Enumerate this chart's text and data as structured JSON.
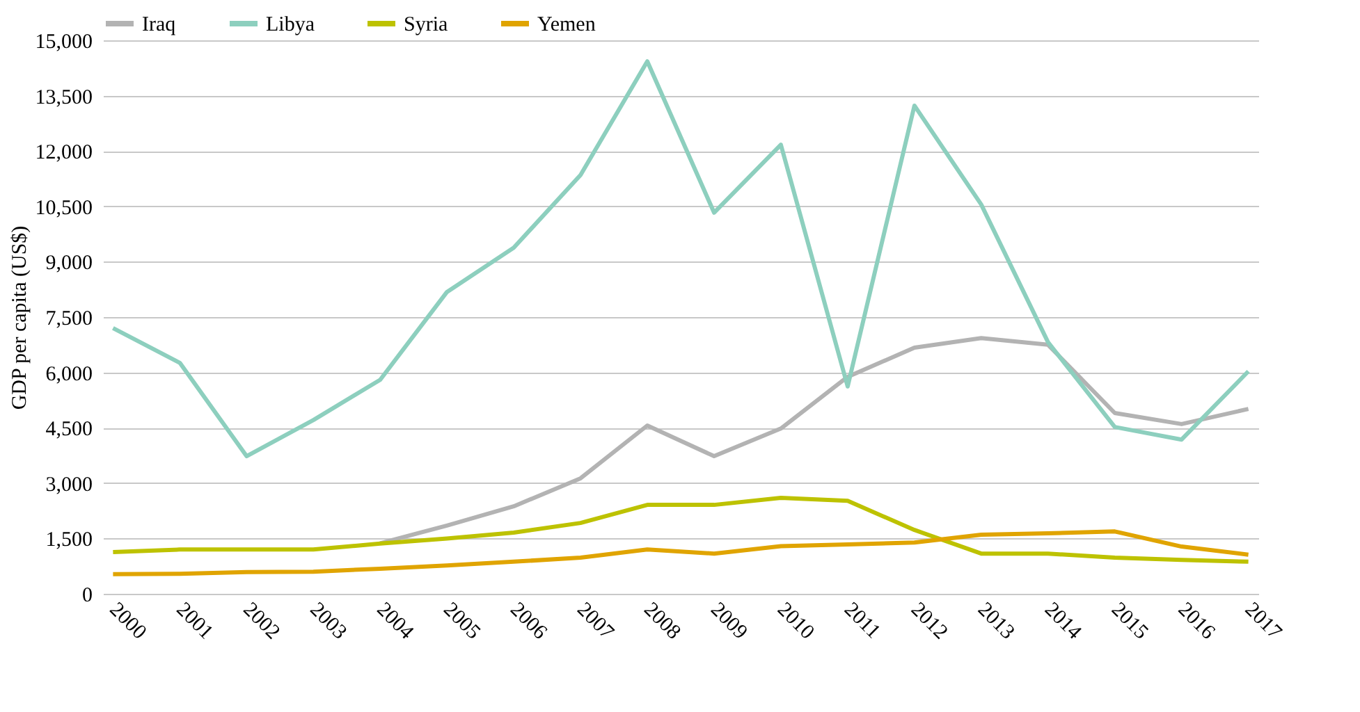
{
  "chart_data": {
    "type": "line",
    "ylabel": "GDP per capita (US$)",
    "categories": [
      "2000",
      "2001",
      "2002",
      "2003",
      "2004",
      "2005",
      "2006",
      "2007",
      "2008",
      "2009",
      "2010",
      "2011",
      "2012",
      "2013",
      "2014",
      "2015",
      "2016",
      "2017"
    ],
    "series": [
      {
        "name": "Iraq",
        "color": "#b3b3b3",
        "values": [
          null,
          null,
          null,
          null,
          1370,
          1850,
          2370,
          3130,
          4560,
          3730,
          4480,
          5880,
          6670,
          6930,
          6750,
          4900,
          4600,
          5010
        ]
      },
      {
        "name": "Libya",
        "color": "#8dcfbe",
        "values": [
          7200,
          6260,
          3730,
          4710,
          5800,
          8180,
          9380,
          11350,
          14430,
          10330,
          12170,
          5620,
          13230,
          10550,
          6820,
          4520,
          4180,
          6030
        ]
      },
      {
        "name": "Syria",
        "color": "#bdc200",
        "values": [
          1130,
          1200,
          1200,
          1200,
          1360,
          1500,
          1660,
          1920,
          2410,
          2410,
          2600,
          2520,
          1730,
          1090,
          1090,
          980,
          920,
          870
        ]
      },
      {
        "name": "Yemen",
        "color": "#e0a400",
        "values": [
          530,
          540,
          590,
          600,
          680,
          770,
          870,
          980,
          1200,
          1090,
          1290,
          1340,
          1390,
          1600,
          1640,
          1690,
          1280,
          1060
        ]
      }
    ],
    "ylim": [
      0,
      15000
    ],
    "yticks": [
      0,
      {
        "value": 1500,
        "label": "1,500"
      },
      {
        "value": 3000,
        "label": "3,000"
      },
      {
        "value": 4500,
        "label": "4,500"
      },
      {
        "value": 6000,
        "label": "6,000"
      },
      {
        "value": 7500,
        "label": "7,500"
      },
      {
        "value": 9000,
        "label": "9,000"
      },
      {
        "value": 10500,
        "label": "10,500"
      },
      {
        "value": 12000,
        "label": "12,000"
      },
      {
        "value": 13500,
        "label": "13,500"
      },
      {
        "value": 15000,
        "label": "15,000"
      }
    ],
    "grid": "y",
    "legend": "top left",
    "line_style": "solid",
    "marker": "none"
  }
}
